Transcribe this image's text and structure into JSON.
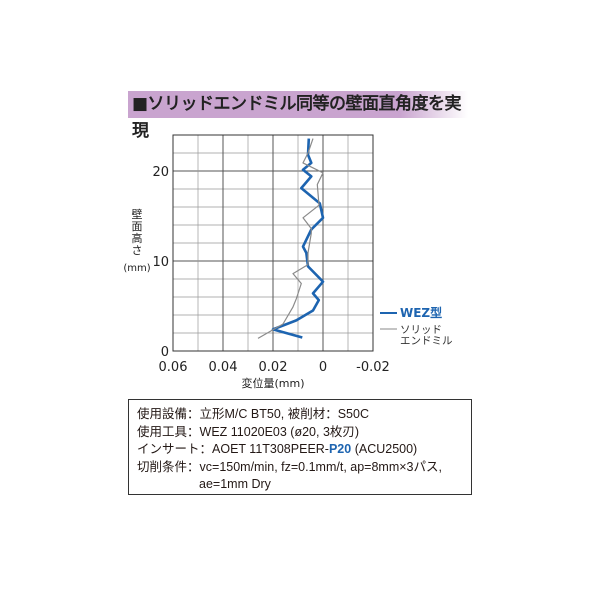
{
  "title": "■ソリッドエンドミル同等の壁面直角度を実現",
  "chart_data": {
    "type": "line",
    "xlabel": "変位量(mm)",
    "ylabel": "壁面高さ(mm)",
    "xlim": [
      0.06,
      -0.02
    ],
    "ylim": [
      0,
      24
    ],
    "x_ticks": [
      "0.06",
      "0.04",
      "0.02",
      "0",
      "-0.02"
    ],
    "y_ticks": [
      "0",
      "10",
      "20"
    ],
    "grid": true,
    "legend_position": "right",
    "series": [
      {
        "name": "WEZ型",
        "color": "#1d64b0",
        "points": [
          [
            0.0083,
            1.5
          ],
          [
            0.02,
            2.4
          ],
          [
            0.0107,
            3.4
          ],
          [
            0.004,
            4.5
          ],
          [
            0.0017,
            5.65
          ],
          [
            0.004,
            6.4
          ],
          [
            0.0,
            7.7
          ],
          [
            0.006,
            9.4
          ],
          [
            0.0067,
            10.9
          ],
          [
            0.008,
            11.6
          ],
          [
            0.0047,
            13.5
          ],
          [
            0.0,
            14.8
          ],
          [
            0.0013,
            16.4
          ],
          [
            0.0087,
            18.1
          ],
          [
            0.0047,
            19.4
          ],
          [
            0.008,
            20.15
          ],
          [
            0.0047,
            20.9
          ],
          [
            0.006,
            21.8
          ],
          [
            0.0057,
            23.6
          ]
        ]
      },
      {
        "name": "ソリッド\nエンドミル",
        "color": "#8a8a8a",
        "points": [
          [
            0.026,
            1.4
          ],
          [
            0.016,
            3.0
          ],
          [
            0.012,
            4.9
          ],
          [
            0.0107,
            5.8
          ],
          [
            0.0087,
            7.5
          ],
          [
            0.012,
            8.6
          ],
          [
            0.006,
            9.6
          ],
          [
            0.006,
            10.9
          ],
          [
            0.0047,
            13.1
          ],
          [
            0.0047,
            13.6
          ],
          [
            0.008,
            14.8
          ],
          [
            0.0016,
            16.2
          ],
          [
            0.0023,
            18.5
          ],
          [
            0.0,
            19.8
          ],
          [
            0.008,
            20.9
          ],
          [
            0.006,
            22.0
          ],
          [
            0.004,
            23.6
          ]
        ]
      }
    ]
  },
  "info": {
    "r1_label": "使用設備：",
    "r1_value": "立形M/C BT50, 被削材：S50C",
    "r2_label": "使用工具：",
    "r2_value": "WEZ 11020E03 (ø20, 3枚刃)",
    "r3_label": "インサート：",
    "r3_pre": "AOET 11T308PEER-",
    "r3_grade": "P20",
    "r3_post": " (ACU2500)",
    "r4_label": "切削条件：",
    "r4_value": "vc=150m/min, fz=0.1mm/t, ap=8mm×3パス,",
    "r5_value": "ae=1mm  Dry"
  }
}
